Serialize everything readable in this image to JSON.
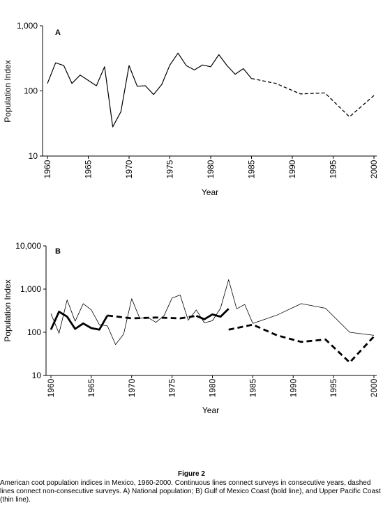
{
  "figure": {
    "title": "Figure 2",
    "caption": "American coot population indices in Mexico, 1960-2000. Continuous lines connect surveys in consecutive years, dashed lines connect non-consecutive surveys. A) National population; B) Gulf of Mexico Coast (bold line), and Upper Pacific Coast (thin line)."
  },
  "chart_data": [
    {
      "type": "line",
      "panel_label": "A",
      "xlabel": "Year",
      "ylabel": "Population Index",
      "yscale": "log",
      "ylim": [
        10,
        1000
      ],
      "xlim": [
        1960,
        2000
      ],
      "x_ticks": [
        1960,
        1965,
        1970,
        1975,
        1980,
        1985,
        1990,
        1995,
        2000
      ],
      "y_tick_labels": [
        "10",
        "100",
        "1,000"
      ],
      "grid": false,
      "series": [
        {
          "style": "solid",
          "x": [
            1960,
            1961,
            1962,
            1963,
            1964,
            1965,
            1966,
            1967,
            1968,
            1969,
            1970,
            1971,
            1972,
            1973,
            1974,
            1975,
            1976,
            1977,
            1978,
            1979,
            1980,
            1981,
            1982,
            1983,
            1984,
            1985
          ],
          "y": [
            130,
            270,
            245,
            130,
            175,
            145,
            120,
            235,
            28,
            48,
            245,
            118,
            120,
            88,
            125,
            250,
            380,
            245,
            210,
            250,
            235,
            360,
            245,
            180,
            220,
            155
          ]
        },
        {
          "style": "dashed",
          "x": [
            1985,
            1988,
            1991,
            1994,
            1997,
            2000
          ],
          "y": [
            155,
            130,
            90,
            93,
            40,
            85
          ]
        }
      ]
    },
    {
      "type": "line",
      "panel_label": "B",
      "xlabel": "Year",
      "ylabel": "Population Index",
      "yscale": "log",
      "ylim": [
        10,
        10000
      ],
      "xlim": [
        1960,
        2000
      ],
      "x_ticks": [
        1960,
        1965,
        1970,
        1975,
        1980,
        1985,
        1990,
        1995,
        2000
      ],
      "y_tick_labels": [
        "10",
        "100",
        "1,000",
        "10,000"
      ],
      "grid": false,
      "series": [
        {
          "style": "bold-solid",
          "x": [
            1960,
            1961,
            1962,
            1963,
            1964,
            1965,
            1966,
            1967
          ],
          "y": [
            115,
            300,
            230,
            120,
            160,
            125,
            115,
            245
          ]
        },
        {
          "style": "bold-dashed",
          "x": [
            1967,
            1970,
            1973,
            1976,
            1978
          ],
          "y": [
            245,
            210,
            220,
            210,
            240
          ]
        },
        {
          "style": "bold-solid",
          "x": [
            1978,
            1979,
            1980,
            1981,
            1982
          ],
          "y": [
            240,
            200,
            260,
            230,
            350
          ]
        },
        {
          "style": "bold-dashed",
          "x": [
            1982,
            1985,
            1988,
            1991,
            1994,
            1997,
            2000
          ],
          "y": [
            115,
            150,
            85,
            60,
            68,
            20,
            80
          ]
        },
        {
          "style": "thin-solid",
          "x": [
            1960,
            1961,
            1962,
            1963,
            1964,
            1965,
            1966,
            1967,
            1968,
            1969,
            1970,
            1971,
            1972,
            1973,
            1974,
            1975,
            1976,
            1977,
            1978,
            1979,
            1980,
            1981,
            1982,
            1983,
            1984,
            1985
          ],
          "y": [
            270,
            95,
            560,
            180,
            460,
            330,
            150,
            140,
            52,
            90,
            600,
            210,
            220,
            170,
            240,
            620,
            730,
            190,
            330,
            165,
            185,
            360,
            1650,
            350,
            440,
            160
          ]
        },
        {
          "style": "thin-solid",
          "x": [
            1985,
            1988,
            1991,
            1994,
            1997,
            2000
          ],
          "y": [
            160,
            250,
            460,
            360,
            100,
            85
          ]
        }
      ]
    }
  ]
}
